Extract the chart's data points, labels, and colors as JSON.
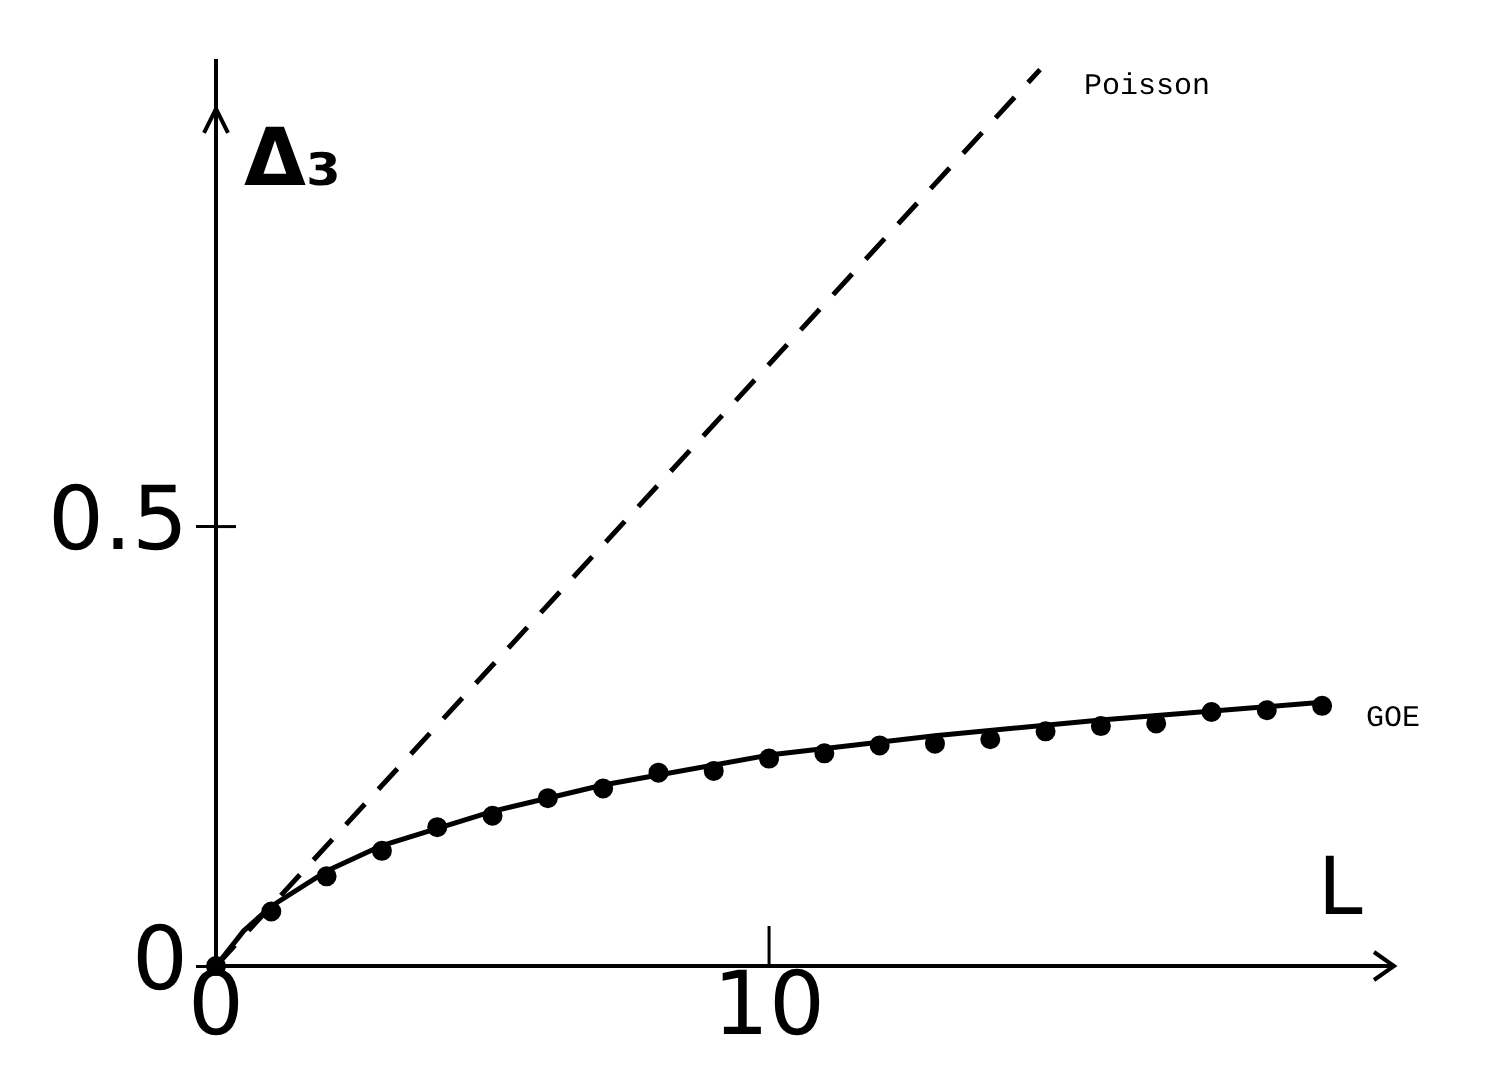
{
  "chart_data": {
    "type": "line",
    "xlabel": "L",
    "ylabel": "Δ₃",
    "xlim": [
      0,
      21.3
    ],
    "ylim": [
      0,
      1.03
    ],
    "xticks": [
      0,
      10
    ],
    "yticks": [
      0,
      0.5
    ],
    "grid": false,
    "legend": false,
    "series": [
      {
        "name": "Poisson",
        "type": "line",
        "line_style": "dashed",
        "marker": "none",
        "color": "#000000",
        "x": [
          0,
          14.9
        ],
        "values": [
          0,
          1.02
        ]
      },
      {
        "name": "GOE",
        "type": "line",
        "line_style": "solid",
        "marker": "none",
        "color": "#000000",
        "x": [
          0,
          0.5,
          1,
          2,
          3,
          5,
          7,
          10,
          13,
          16,
          20
        ],
        "values": [
          0,
          0.04,
          0.068,
          0.108,
          0.137,
          0.176,
          0.206,
          0.24,
          0.262,
          0.28,
          0.3
        ]
      },
      {
        "type": "scatter",
        "marker": "circle",
        "color": "#000000",
        "x": [
          0,
          1,
          2,
          3,
          4,
          5,
          6,
          7,
          8,
          9,
          10,
          11,
          12,
          13,
          14,
          15,
          16,
          17,
          18,
          19,
          20
        ],
        "values": [
          0,
          0.062,
          0.102,
          0.131,
          0.158,
          0.171,
          0.191,
          0.202,
          0.22,
          0.222,
          0.236,
          0.242,
          0.251,
          0.253,
          0.258,
          0.267,
          0.273,
          0.276,
          0.289,
          0.291,
          0.296
        ]
      }
    ]
  }
}
